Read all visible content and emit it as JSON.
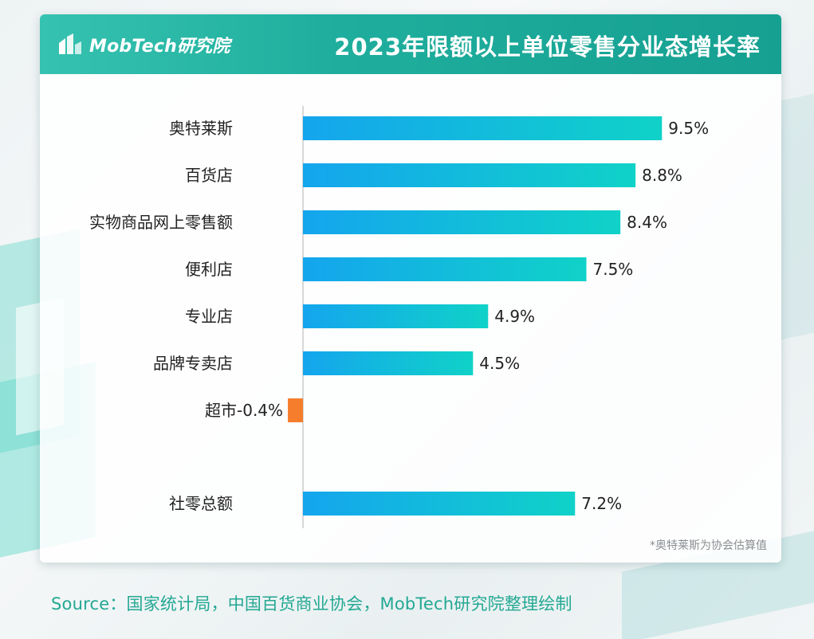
{
  "header": {
    "logo_text": "MobTech研究院",
    "title": "2023年限额以上单位零售分业态增长率"
  },
  "chart_data": {
    "type": "bar",
    "orientation": "horizontal",
    "categories": [
      "奥特莱斯",
      "百货店",
      "实物商品网上零售额",
      "便利店",
      "专业店",
      "品牌专卖店",
      "超市",
      "社零总额"
    ],
    "values": [
      9.5,
      8.8,
      8.4,
      7.5,
      4.9,
      4.5,
      -0.4,
      7.2
    ],
    "value_labels": [
      "9.5%",
      "8.8%",
      "8.4%",
      "7.5%",
      "4.9%",
      "4.5%",
      "-0.4%",
      "7.2%"
    ],
    "unit": "%",
    "xlim": [
      -0.4,
      9.5
    ],
    "grid": false,
    "colors": {
      "positive_start": "#14a5ee",
      "positive_end": "#10d2c8",
      "negative": "#f57d2c",
      "axis": "#bdbdbd"
    }
  },
  "footnote": "*奥特莱斯为协会估算值",
  "source": "Source：国家统计局，中国百货商业协会，MobTech研究院整理绘制"
}
